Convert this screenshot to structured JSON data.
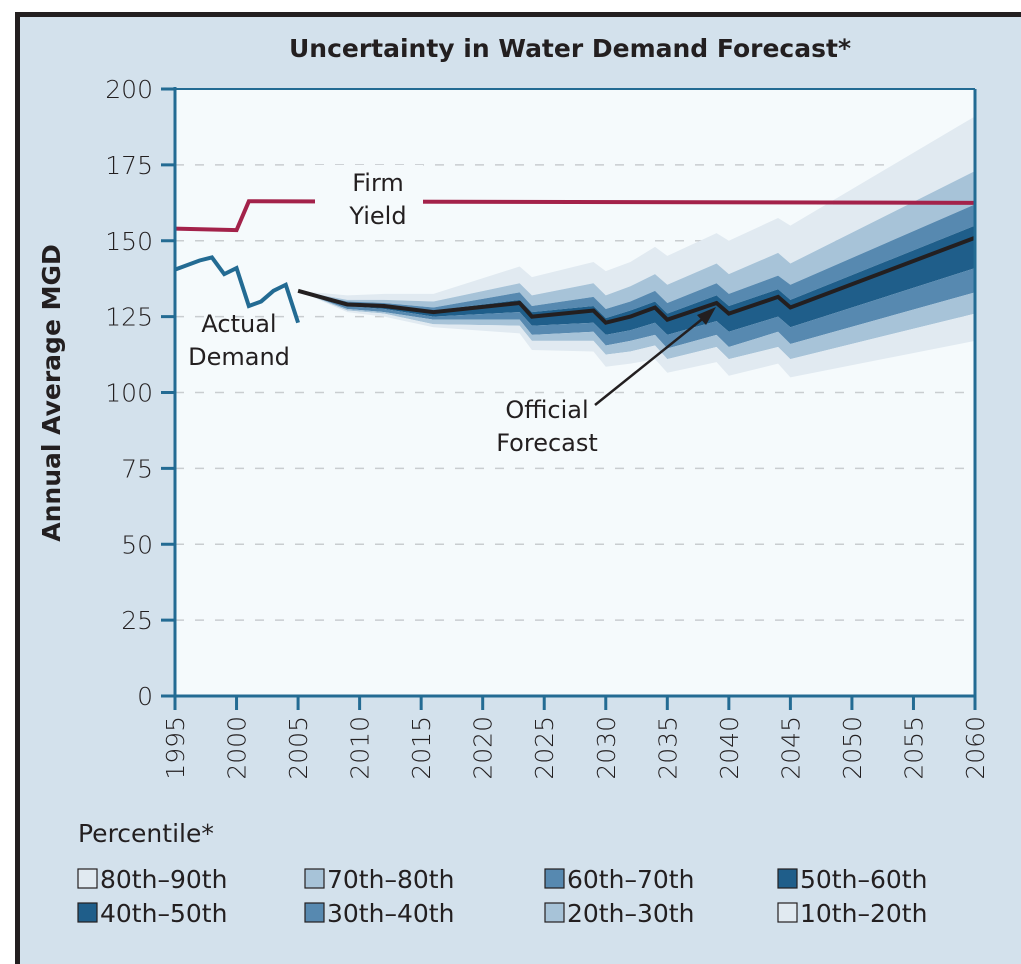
{
  "chart_data": {
    "type": "area",
    "title": "Uncertainty in Water Demand Forecast*",
    "xlabel": "",
    "ylabel": "Annual Average MGD",
    "xlim": [
      1995,
      2060
    ],
    "ylim": [
      0,
      200
    ],
    "xticks": [
      1995,
      2000,
      2005,
      2010,
      2015,
      2020,
      2025,
      2030,
      2035,
      2040,
      2045,
      2050,
      2055,
      2060
    ],
    "yticks": [
      0,
      25,
      50,
      75,
      100,
      125,
      150,
      175,
      200
    ],
    "grid": "horizontal-dashed",
    "colors": {
      "firm_yield": "#a3224a",
      "actual_demand": "#236b93",
      "forecast": "#231f20",
      "band_outer": "#e1eaf1",
      "band_mid": "#a7c3d8",
      "band_inner": "#5789b0",
      "band_core": "#1f5e8a",
      "plot_bg": "#f5fafc",
      "panel_bg": "#d3e1ec"
    },
    "firm_yield": {
      "label": "Firm Yield",
      "x": [
        1995,
        2000,
        2001,
        2060
      ],
      "y": [
        154,
        153.5,
        163,
        162.5
      ]
    },
    "actual_demand": {
      "label": "Actual Demand",
      "x": [
        1995,
        1997,
        1998,
        1999,
        2000,
        2001,
        2002,
        2003,
        2004,
        2005
      ],
      "y": [
        140.5,
        143.5,
        144.5,
        139,
        141,
        128.5,
        130,
        133.5,
        135.5,
        123
      ]
    },
    "official_forecast": {
      "label": "Official Forecast",
      "x": [
        2005,
        2009,
        2012,
        2016,
        2023,
        2024,
        2029,
        2030,
        2032,
        2034,
        2035,
        2039,
        2040,
        2044,
        2045,
        2060
      ],
      "p50": [
        133.5,
        129,
        128.5,
        126.5,
        129.5,
        125,
        127,
        123,
        125,
        128,
        124,
        129.5,
        126,
        131.5,
        128,
        151
      ],
      "p90": [
        133.5,
        132,
        132.5,
        132.5,
        141.5,
        138,
        143,
        140,
        143,
        148,
        145,
        152.5,
        150,
        157.5,
        155,
        191
      ],
      "p80": [
        133.5,
        130.5,
        130.5,
        130,
        136,
        132,
        136,
        132,
        135,
        139,
        135.5,
        142.5,
        139,
        146,
        142.5,
        173
      ],
      "p70": [
        133.5,
        130,
        129.5,
        128,
        133,
        128.5,
        131.5,
        127.5,
        130,
        133.5,
        129.5,
        136,
        132.5,
        138.5,
        135.5,
        162
      ],
      "p60": [
        133.5,
        129.5,
        129,
        127,
        130.5,
        126.5,
        128.5,
        124.5,
        127,
        130,
        126,
        132,
        128.5,
        134,
        130.5,
        155
      ],
      "p40": [
        133.5,
        128.5,
        127.5,
        125,
        126.5,
        122,
        123,
        119,
        120.5,
        123,
        119,
        123.5,
        120,
        125,
        121.5,
        141
      ],
      "p30": [
        133.5,
        127.5,
        126.5,
        124,
        124,
        119,
        120,
        115.5,
        117,
        119,
        114.5,
        119,
        115,
        120,
        116,
        133
      ],
      "p20": [
        133.5,
        127,
        126,
        122.5,
        122,
        117,
        117,
        112.5,
        113.5,
        115.5,
        111,
        115,
        111,
        115,
        111,
        126
      ],
      "p10": [
        133.5,
        126.5,
        125,
        121.5,
        119.5,
        114,
        113.5,
        108.5,
        109.5,
        111,
        106.5,
        110,
        105.5,
        109.5,
        105,
        117
      ]
    },
    "legend": {
      "title": "Percentile*",
      "placement": "bottom",
      "items": [
        {
          "label": "80th–90th",
          "color": "#e1eaf1"
        },
        {
          "label": "70th–80th",
          "color": "#a7c3d8"
        },
        {
          "label": "60th–70th",
          "color": "#5789b0"
        },
        {
          "label": "50th–60th",
          "color": "#1f5e8a"
        },
        {
          "label": "40th–50th",
          "color": "#1f5e8a"
        },
        {
          "label": "30th–40th",
          "color": "#5789b0"
        },
        {
          "label": "20th–30th",
          "color": "#a7c3d8"
        },
        {
          "label": "10th–20th",
          "color": "#e1eaf1"
        }
      ]
    },
    "annotations": {
      "firm_yield": [
        "Firm",
        "Yield"
      ],
      "actual_demand": [
        "Actual",
        "Demand"
      ],
      "official_forecast": [
        "Official",
        "Forecast"
      ]
    }
  }
}
